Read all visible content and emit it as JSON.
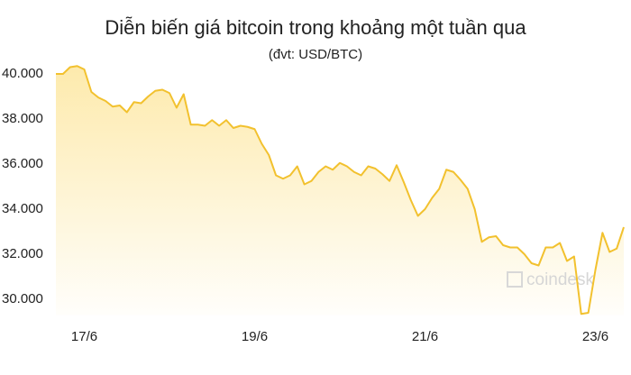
{
  "chart_data": {
    "type": "area",
    "title": "Diễn biến giá bitcoin trong khoảng một tuần qua",
    "subtitle": "(đvt: USD/BTC)",
    "watermark": "coindesk",
    "color": "#f2c12e",
    "fill_color": "#fde9a8",
    "categories": [
      null,
      null,
      null,
      null,
      "17/6",
      null,
      null,
      null,
      null,
      null,
      null,
      null,
      null,
      null,
      null,
      null,
      null,
      null,
      null,
      null,
      null,
      null,
      null,
      null,
      null,
      null,
      null,
      null,
      "19/6",
      null,
      null,
      null,
      null,
      null,
      null,
      null,
      null,
      null,
      null,
      null,
      null,
      null,
      null,
      null,
      null,
      null,
      null,
      null,
      null,
      null,
      null,
      null,
      "21/6",
      null,
      null,
      null,
      null,
      null,
      null,
      null,
      null,
      null,
      null,
      null,
      null,
      null,
      null,
      null,
      null,
      null,
      null,
      null,
      null,
      null,
      null,
      null,
      "23/6",
      null,
      null,
      null,
      null
    ],
    "values": [
      40000,
      40000,
      40300,
      40350,
      40200,
      39200,
      38950,
      38800,
      38550,
      38600,
      38300,
      38750,
      38700,
      39000,
      39250,
      39300,
      39150,
      38500,
      39100,
      37750,
      37750,
      37700,
      37950,
      37700,
      37950,
      37600,
      37700,
      37650,
      37550,
      36900,
      36400,
      35500,
      35350,
      35500,
      35900,
      35100,
      35250,
      35650,
      35900,
      35750,
      36050,
      35900,
      35650,
      35500,
      35900,
      35800,
      35550,
      35250,
      35950,
      35200,
      34400,
      33700,
      34000,
      34500,
      34900,
      35750,
      35650,
      35300,
      34900,
      34000,
      32550,
      32750,
      32800,
      32400,
      32300,
      32300,
      32000,
      31600,
      31500,
      32300,
      32300,
      32500,
      31700,
      31900,
      29350,
      29400,
      31300,
      32950,
      32100,
      32250,
      33200
    ],
    "ylim": [
      29300,
      40700
    ],
    "yticks": [
      {
        "value": 30000,
        "label": "30.000"
      },
      {
        "value": 32000,
        "label": "32.000"
      },
      {
        "value": 34000,
        "label": "34.000"
      },
      {
        "value": 36000,
        "label": "36.000"
      },
      {
        "value": 38000,
        "label": "38.000"
      },
      {
        "value": 40000,
        "label": "40.000"
      }
    ],
    "grid": false
  }
}
